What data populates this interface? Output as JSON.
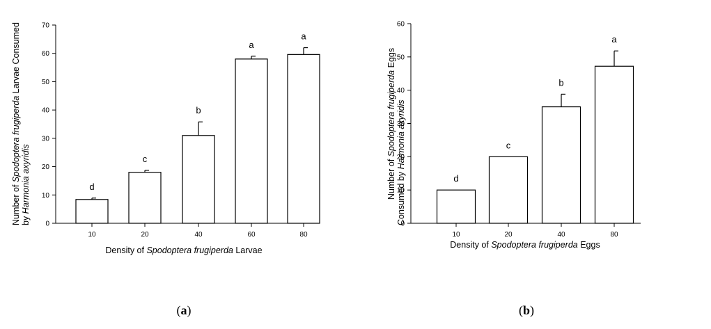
{
  "chart_data": [
    {
      "type": "bar",
      "categories": [
        "10",
        "20",
        "40",
        "60",
        "80"
      ],
      "series": [
        {
          "values": [
            8.4,
            18,
            31,
            58,
            59.6
          ]
        }
      ],
      "errors": [
        0.5,
        0.7,
        4.8,
        1.0,
        2.4
      ],
      "significance": [
        "d",
        "c",
        "b",
        "a",
        "a"
      ],
      "ylim": [
        0,
        70
      ],
      "yticks": [
        "0",
        "10",
        "20",
        "30",
        "40",
        "50",
        "60",
        "70"
      ],
      "xlabel_parts": [
        {
          "text": "Density of ",
          "italic": false
        },
        {
          "text": "Spodoptera frugiperda",
          "italic": true
        },
        {
          "text": " Larvae",
          "italic": false
        }
      ],
      "ylabel_line1_parts": [
        {
          "text": "Number of ",
          "italic": false
        },
        {
          "text": "Spodoptera frugiperda",
          "italic": true
        },
        {
          "text": " Larvae Consumed",
          "italic": false
        }
      ],
      "ylabel_line2_parts": [
        {
          "text": "by ",
          "italic": false
        },
        {
          "text": "Harmonia axyridis",
          "italic": true
        }
      ],
      "panel_label_parts": [
        {
          "text": "(",
          "bold": false
        },
        {
          "text": "a",
          "bold": true
        },
        {
          "text": ")",
          "bold": false
        }
      ]
    },
    {
      "type": "bar",
      "categories": [
        "10",
        "20",
        "40",
        "80"
      ],
      "series": [
        {
          "values": [
            10,
            20,
            35,
            47.2
          ]
        }
      ],
      "errors": [
        0,
        0,
        3.8,
        4.6
      ],
      "significance": [
        "d",
        "c",
        "b",
        "a"
      ],
      "ylim": [
        0,
        60
      ],
      "yticks": [
        "0",
        "10",
        "20",
        "30",
        "40",
        "50",
        "60"
      ],
      "xlabel_parts": [
        {
          "text": "Density of ",
          "italic": false
        },
        {
          "text": "Spodoptera frugiperda",
          "italic": true
        },
        {
          "text": " Eggs",
          "italic": false
        }
      ],
      "ylabel_line1_parts": [
        {
          "text": "Number of  ",
          "italic": false
        },
        {
          "text": "Spodoptera frugiperda",
          "italic": true
        },
        {
          "text": " Eggs",
          "italic": false
        }
      ],
      "ylabel_line2_parts": [
        {
          "text": "Consumed by ",
          "italic": false
        },
        {
          "text": "Harmonia axyridis",
          "italic": true
        }
      ],
      "panel_label_parts": [
        {
          "text": "(",
          "bold": false
        },
        {
          "text": "b",
          "bold": true
        },
        {
          "text": ")",
          "bold": false
        }
      ]
    }
  ]
}
